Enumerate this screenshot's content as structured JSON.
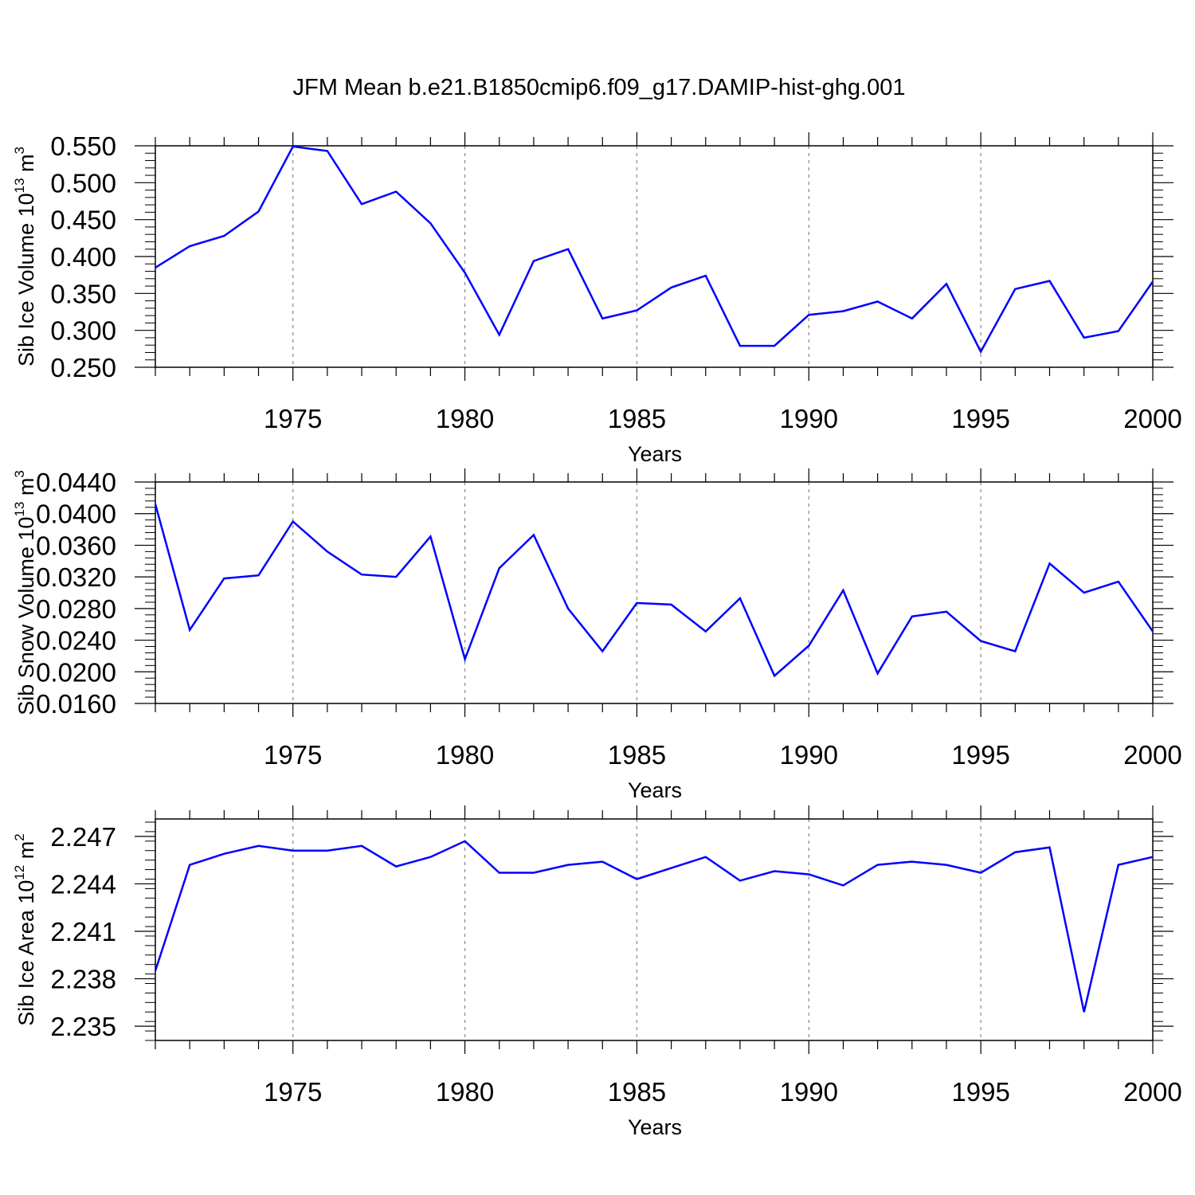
{
  "title": "JFM Mean b.e21.B1850cmip6.f09_g17.DAMIP-hist-ghg.001",
  "chart_data": [
    {
      "type": "line",
      "title": "JFM Mean b.e21.B1850cmip6.f09_g17.DAMIP-hist-ghg.001",
      "xlabel": "Years",
      "ylabel": {
        "text": "Sib Ice Volume 10",
        "exp": "13",
        "unit": " m",
        "unit_exp": "3"
      },
      "xlim": [
        1971,
        2000
      ],
      "ylim": [
        0.25,
        0.55
      ],
      "x_ticks": [
        "1975",
        "1980",
        "1985",
        "1990",
        "1995",
        "2000"
      ],
      "y_ticks": [
        "0.250",
        "0.300",
        "0.350",
        "0.400",
        "0.450",
        "0.500",
        "0.550"
      ],
      "grid": "dashed vertical at major x ticks",
      "line_color": "#0000ff",
      "x": [
        1971,
        1972,
        1973,
        1974,
        1975,
        1976,
        1977,
        1978,
        1979,
        1980,
        1981,
        1982,
        1983,
        1984,
        1985,
        1986,
        1987,
        1988,
        1989,
        1990,
        1991,
        1992,
        1993,
        1994,
        1995,
        1996,
        1997,
        1998,
        1999,
        2000
      ],
      "values": [
        0.385,
        0.414,
        0.428,
        0.461,
        0.549,
        0.543,
        0.471,
        0.488,
        0.445,
        0.378,
        0.294,
        0.394,
        0.41,
        0.316,
        0.327,
        0.358,
        0.374,
        0.279,
        0.279,
        0.321,
        0.326,
        0.339,
        0.316,
        0.363,
        0.271,
        0.356,
        0.367,
        0.29,
        0.299,
        0.366
      ]
    },
    {
      "type": "line",
      "xlabel": "Years",
      "ylabel": {
        "text": "Sib Snow Volume 10",
        "exp": "13",
        "unit": " m",
        "unit_exp": "3"
      },
      "xlim": [
        1971,
        2000
      ],
      "ylim": [
        0.016,
        0.044
      ],
      "x_ticks": [
        "1975",
        "1980",
        "1985",
        "1990",
        "1995",
        "2000"
      ],
      "y_ticks": [
        "0.0160",
        "0.0200",
        "0.0240",
        "0.0280",
        "0.0320",
        "0.0360",
        "0.0400",
        "0.0440"
      ],
      "grid": "dashed vertical at major x ticks",
      "line_color": "#0000ff",
      "x": [
        1971,
        1972,
        1973,
        1974,
        1975,
        1976,
        1977,
        1978,
        1979,
        1980,
        1981,
        1982,
        1983,
        1984,
        1985,
        1986,
        1987,
        1988,
        1989,
        1990,
        1991,
        1992,
        1993,
        1994,
        1995,
        1996,
        1997,
        1998,
        1999,
        2000
      ],
      "values": [
        0.0412,
        0.0253,
        0.0318,
        0.0322,
        0.039,
        0.0352,
        0.0323,
        0.032,
        0.0371,
        0.0216,
        0.0331,
        0.0373,
        0.028,
        0.0226,
        0.0287,
        0.0285,
        0.0251,
        0.0293,
        0.0195,
        0.0233,
        0.0303,
        0.0198,
        0.027,
        0.0276,
        0.0239,
        0.0226,
        0.0337,
        0.03,
        0.0314,
        0.0251
      ]
    },
    {
      "type": "line",
      "xlabel": "Years",
      "ylabel": {
        "text": "Sib Ice Area 10",
        "exp": "12",
        "unit": " m",
        "unit_exp": "2"
      },
      "xlim": [
        1971,
        2000
      ],
      "ylim": [
        2.2341,
        2.2481
      ],
      "x_ticks": [
        "1975",
        "1980",
        "1985",
        "1990",
        "1995",
        "2000"
      ],
      "y_ticks": [
        "2.235",
        "2.238",
        "2.241",
        "2.244",
        "2.247"
      ],
      "grid": "dashed vertical at major x ticks",
      "line_color": "#0000ff",
      "x": [
        1971,
        1972,
        1973,
        1974,
        1975,
        1976,
        1977,
        1978,
        1979,
        1980,
        1981,
        1982,
        1983,
        1984,
        1985,
        1986,
        1987,
        1988,
        1989,
        1990,
        1991,
        1992,
        1993,
        1994,
        1995,
        1996,
        1997,
        1998,
        1999,
        2000
      ],
      "values": [
        2.2385,
        2.2452,
        2.2459,
        2.2464,
        2.2461,
        2.2461,
        2.2464,
        2.2451,
        2.2457,
        2.2467,
        2.2447,
        2.2447,
        2.2452,
        2.2454,
        2.2443,
        2.245,
        2.2457,
        2.2442,
        2.2448,
        2.2446,
        2.2439,
        2.2452,
        2.2454,
        2.2452,
        2.2447,
        2.246,
        2.2463,
        2.2359,
        2.2452,
        2.2457
      ]
    }
  ]
}
